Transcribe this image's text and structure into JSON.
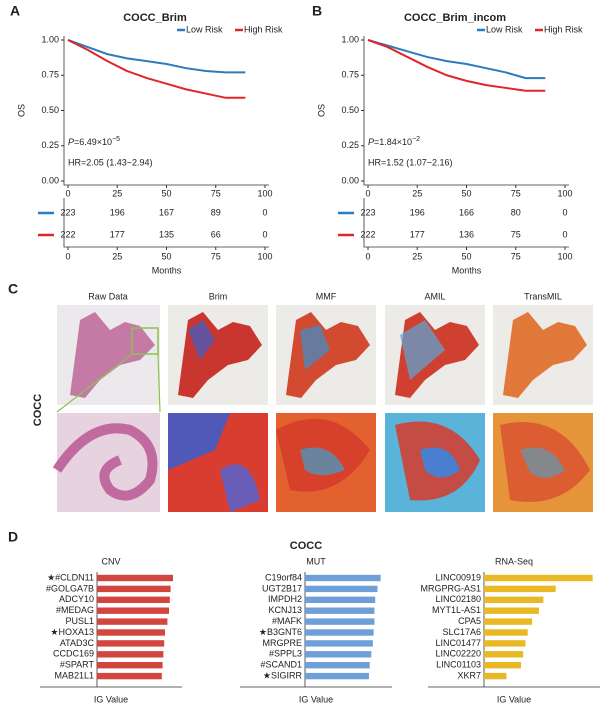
{
  "panel_labels": {
    "a": "A",
    "b": "B",
    "c": "C",
    "d": "D"
  },
  "panel_c": {
    "row_label": "COCC",
    "columns": [
      "Raw Data",
      "Brim",
      "MMF",
      "AMIL",
      "TransMIL"
    ]
  },
  "panel_d_title": "COCC",
  "chart_data": [
    {
      "type": "line",
      "title": "COCC_Brim",
      "ylabel": "OS",
      "xlabel": "Months",
      "x": [
        0,
        10,
        20,
        30,
        40,
        50,
        60,
        70,
        80,
        90
      ],
      "series": [
        {
          "name": "Low Risk",
          "color": "#2b7bbf",
          "values": [
            1.0,
            0.95,
            0.9,
            0.87,
            0.85,
            0.83,
            0.8,
            0.78,
            0.77,
            0.77
          ],
          "at_risk": [
            223,
            196,
            167,
            89,
            0
          ]
        },
        {
          "name": "High Risk",
          "color": "#e0252b",
          "values": [
            1.0,
            0.93,
            0.85,
            0.78,
            0.73,
            0.69,
            0.65,
            0.62,
            0.59,
            0.59
          ],
          "at_risk": [
            222,
            177,
            135,
            66,
            0
          ]
        }
      ],
      "xlim": [
        0,
        100
      ],
      "xticks": [
        0,
        25,
        50,
        75,
        100
      ],
      "ylim": [
        0,
        1
      ],
      "yticks": [
        {
          "value": 0,
          "label": "0.00"
        },
        {
          "value": 0.25,
          "label": "0.25"
        },
        {
          "value": 0.5,
          "label": "0.50"
        },
        {
          "value": 0.75,
          "label": "0.75"
        },
        {
          "value": 1,
          "label": "1.00"
        }
      ],
      "legend": "top-right",
      "p_label": "P",
      "p_text": "=6.49×10",
      "p_exp": "−5",
      "hr_text": "HR=2.05 (1.43−2.94)"
    },
    {
      "type": "line",
      "title": "COCC_Brim_incom",
      "ylabel": "OS",
      "xlabel": "Months",
      "x": [
        0,
        10,
        20,
        30,
        40,
        50,
        60,
        70,
        80,
        90
      ],
      "series": [
        {
          "name": "Low Risk",
          "color": "#2b7bbf",
          "values": [
            1.0,
            0.96,
            0.92,
            0.88,
            0.85,
            0.83,
            0.8,
            0.77,
            0.73,
            0.73
          ],
          "at_risk": [
            223,
            196,
            166,
            80,
            0
          ]
        },
        {
          "name": "High Risk",
          "color": "#e0252b",
          "values": [
            1.0,
            0.95,
            0.88,
            0.81,
            0.75,
            0.71,
            0.68,
            0.66,
            0.64,
            0.64
          ],
          "at_risk": [
            222,
            177,
            136,
            75,
            0
          ]
        }
      ],
      "xlim": [
        0,
        100
      ],
      "xticks": [
        0,
        25,
        50,
        75,
        100
      ],
      "ylim": [
        0,
        1
      ],
      "yticks": [
        {
          "value": 0,
          "label": "0.00"
        },
        {
          "value": 0.25,
          "label": "0.25"
        },
        {
          "value": 0.5,
          "label": "0.50"
        },
        {
          "value": 0.75,
          "label": "0.75"
        },
        {
          "value": 1,
          "label": "1.00"
        }
      ],
      "legend": "top-right",
      "p_label": "P",
      "p_text": "=1.84×10",
      "p_exp": "−2",
      "hr_text": "HR=1.52 (1.07−2.16)"
    },
    {
      "type": "bar",
      "title": "CNV",
      "xlabel": "IG Value",
      "color": "#d2463f",
      "xlim": [
        0,
        1
      ],
      "categories": [
        "★#CLDN11",
        "#GOLGA7B",
        "ADCY10",
        "#MEDAG",
        "PUSL1",
        "★HOXA13",
        "ATAD3C",
        "CCDC169",
        "#SPART",
        "MAB21L1"
      ],
      "values": [
        0.95,
        0.92,
        0.91,
        0.9,
        0.88,
        0.85,
        0.84,
        0.83,
        0.82,
        0.81
      ]
    },
    {
      "type": "bar",
      "title": "MUT",
      "xlabel": "IG Value",
      "color": "#6f9fd8",
      "xlim": [
        0,
        1
      ],
      "categories": [
        "C19orf84",
        "UGT2B17",
        "IMPDH2",
        "KCNJ13",
        "#MAFK",
        "★B3GNT6",
        "MRGPRE",
        "#SPPL3",
        "#SCAND1",
        "★SIGIRR"
      ],
      "values": [
        0.97,
        0.93,
        0.9,
        0.89,
        0.89,
        0.88,
        0.87,
        0.85,
        0.83,
        0.82
      ]
    },
    {
      "type": "bar",
      "title": "RNA-Seq",
      "xlabel": "IG Value",
      "color": "#e8b825",
      "xlim": [
        0,
        1
      ],
      "categories": [
        "LINC00919",
        "MRGPRG-AS1",
        "LINC02180",
        "MYT1L-AS1",
        "CPA5",
        "SLC17A6",
        "LINC01477",
        "LINC02220",
        "LINC01103",
        "XKR7"
      ],
      "values": [
        0.97,
        0.64,
        0.53,
        0.49,
        0.43,
        0.39,
        0.37,
        0.35,
        0.33,
        0.2
      ]
    }
  ]
}
